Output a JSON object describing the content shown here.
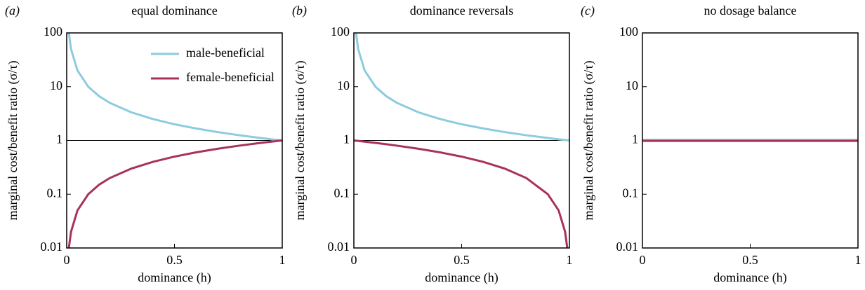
{
  "chart_data": [
    {
      "type": "line",
      "panel": "(a)",
      "title": "equal dominance",
      "ylabel": "marginal cost/benefit ratio (σ/τ)",
      "xlabel": "dominance (h)",
      "log_y": true,
      "xlim": [
        0,
        1
      ],
      "ylim": [
        0.01,
        100
      ],
      "xticks": [
        0,
        0.5,
        1
      ],
      "yticks": [
        0.01,
        0.1,
        1,
        10,
        100
      ],
      "hline": 1,
      "legend": "upper right",
      "x": [
        0,
        0.01,
        0.02,
        0.05,
        0.1,
        0.15,
        0.2,
        0.3,
        0.4,
        0.5,
        0.6,
        0.7,
        0.8,
        0.9,
        0.95,
        0.98,
        0.99,
        1
      ],
      "series": [
        {
          "name": "male-beneficial",
          "color": "#8ccbe0",
          "values": [
            null,
            100,
            50,
            20,
            10,
            6.67,
            5,
            3.33,
            2.5,
            2,
            1.67,
            1.43,
            1.25,
            1.11,
            1.05,
            1.02,
            1.01,
            1
          ]
        },
        {
          "name": "female-beneficial",
          "color": "#a8325a",
          "values": [
            null,
            0.01,
            0.02,
            0.05,
            0.1,
            0.15,
            0.2,
            0.3,
            0.4,
            0.5,
            0.6,
            0.7,
            0.8,
            0.9,
            0.95,
            0.98,
            0.99,
            1
          ]
        }
      ]
    },
    {
      "type": "line",
      "panel": "(b)",
      "title": "dominance reversals",
      "ylabel": "marginal cost/benefit ratio (σ/τ)",
      "xlabel": "dominance (h)",
      "log_y": true,
      "xlim": [
        0,
        1
      ],
      "ylim": [
        0.01,
        100
      ],
      "xticks": [
        0,
        0.5,
        1
      ],
      "yticks": [
        0.01,
        0.1,
        1,
        10,
        100
      ],
      "hline": 1,
      "x": [
        0,
        0.01,
        0.02,
        0.05,
        0.1,
        0.15,
        0.2,
        0.3,
        0.4,
        0.5,
        0.6,
        0.7,
        0.8,
        0.9,
        0.95,
        0.98,
        0.99,
        1
      ],
      "series": [
        {
          "color": "#8ccbe0",
          "values": [
            null,
            100,
            50,
            20,
            10,
            6.67,
            5,
            3.33,
            2.5,
            2,
            1.67,
            1.43,
            1.25,
            1.11,
            1.05,
            1.02,
            1.01,
            1
          ]
        },
        {
          "color": "#a8325a",
          "values": [
            1,
            0.99,
            0.98,
            0.95,
            0.9,
            0.85,
            0.8,
            0.7,
            0.6,
            0.5,
            0.4,
            0.3,
            0.2,
            0.1,
            0.05,
            0.02,
            0.01,
            null
          ]
        }
      ]
    },
    {
      "type": "line",
      "panel": "(c)",
      "title": "no dosage balance",
      "ylabel": "marginal cost/benefit ratio (σ/τ)",
      "xlabel": "dominance (h)",
      "log_y": true,
      "xlim": [
        0,
        1
      ],
      "ylim": [
        0.01,
        100
      ],
      "xticks": [
        0,
        0.5,
        1
      ],
      "yticks": [
        0.01,
        0.1,
        1,
        10,
        100
      ],
      "x": [
        0,
        1
      ],
      "series": [
        {
          "color": "#8ccbe0",
          "values": [
            1.03,
            1.03
          ]
        },
        {
          "color": "#a8325a",
          "values": [
            0.98,
            0.98
          ]
        }
      ]
    }
  ]
}
